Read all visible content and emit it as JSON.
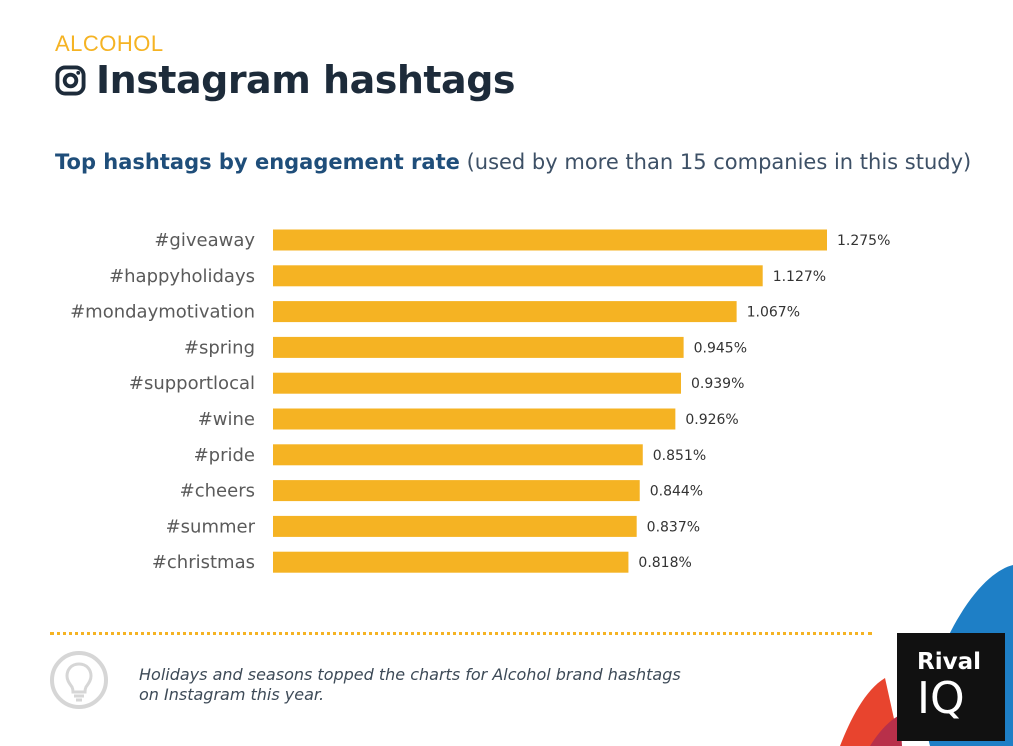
{
  "header": {
    "category": "ALCOHOL",
    "title": "Instagram hashtags",
    "subtitle_bold": "Top hashtags by engagement rate",
    "subtitle_rest": "(used by more than 15 companies in this study)"
  },
  "chart_data": {
    "type": "bar",
    "orientation": "horizontal",
    "categories": [
      "#giveaway",
      "#happyholidays",
      "#mondaymotivation",
      "#spring",
      "#supportlocal",
      "#wine",
      "#pride",
      "#cheers",
      "#summer",
      "#christmas"
    ],
    "values": [
      1.275,
      1.127,
      1.067,
      0.945,
      0.939,
      0.926,
      0.851,
      0.844,
      0.837,
      0.818
    ],
    "value_labels": [
      "1.275%",
      "1.127%",
      "1.067%",
      "0.945%",
      "0.939%",
      "0.926%",
      "0.851%",
      "0.844%",
      "0.837%",
      "0.818%"
    ],
    "bar_color": "#F5B323",
    "xlim": [
      0,
      1.3
    ],
    "grid": false,
    "title": "Top hashtags by engagement rate"
  },
  "footer": {
    "note_line1": "Holidays and seasons topped the charts for Alcohol brand hashtags",
    "note_line2": "on Instagram this year."
  },
  "logo": {
    "line1": "Rival",
    "line2": "IQ"
  },
  "colors": {
    "accent": "#F5B323",
    "title": "#1d2b3a",
    "subtitle": "#1f4e7a",
    "logo_bg": "#111111",
    "deco_blue": "#1E7FC6",
    "deco_red": "#E8442E"
  },
  "icons": {
    "title_icon": "instagram-icon",
    "note_icon": "lightbulb-icon"
  }
}
